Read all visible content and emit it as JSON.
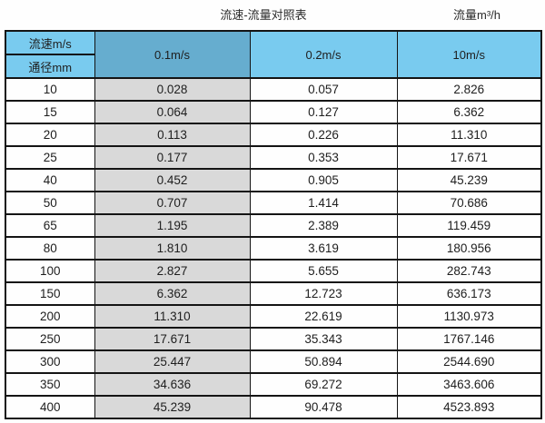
{
  "page": {
    "title": "流速-流量对照表",
    "unit_label": "流量m³/h"
  },
  "table": {
    "corner": {
      "top": "流速m/s",
      "bottom": "通径mm"
    },
    "velocity_headers": [
      "0.1m/s",
      "0.2m/s",
      "10m/s"
    ],
    "rows": [
      [
        "10",
        "0.028",
        "0.057",
        "2.826"
      ],
      [
        "15",
        "0.064",
        "0.127",
        "6.362"
      ],
      [
        "20",
        "0.113",
        "0.226",
        "11.310"
      ],
      [
        "25",
        "0.177",
        "0.353",
        "17.671"
      ],
      [
        "40",
        "0.452",
        "0.905",
        "45.239"
      ],
      [
        "50",
        "0.707",
        "1.414",
        "70.686"
      ],
      [
        "65",
        "1.195",
        "2.389",
        "119.459"
      ],
      [
        "80",
        "1.810",
        "3.619",
        "180.956"
      ],
      [
        "100",
        "2.827",
        "5.655",
        "282.743"
      ],
      [
        "150",
        "6.362",
        "12.723",
        "636.173"
      ],
      [
        "200",
        "11.310",
        "22.619",
        "1130.973"
      ],
      [
        "250",
        "17.671",
        "35.343",
        "1767.146"
      ],
      [
        "300",
        "25.447",
        "50.894",
        "2544.690"
      ],
      [
        "350",
        "34.636",
        "69.272",
        "3463.606"
      ],
      [
        "400",
        "45.239",
        "90.478",
        "4523.893"
      ]
    ]
  },
  "colors": {
    "header_light_blue": "#79cbef",
    "header_dark_blue": "#66adcf",
    "highlight_column_gray": "#d9d9d9",
    "border_black": "#141414"
  },
  "chart_data": {
    "type": "table",
    "title": "流速-流量对照表",
    "unit": "流量m³/h",
    "columns": [
      "通径mm",
      "0.1m/s",
      "0.2m/s",
      "10m/s"
    ],
    "rows": [
      [
        10,
        0.028,
        0.057,
        2.826
      ],
      [
        15,
        0.064,
        0.127,
        6.362
      ],
      [
        20,
        0.113,
        0.226,
        11.31
      ],
      [
        25,
        0.177,
        0.353,
        17.671
      ],
      [
        40,
        0.452,
        0.905,
        45.239
      ],
      [
        50,
        0.707,
        1.414,
        70.686
      ],
      [
        65,
        1.195,
        2.389,
        119.459
      ],
      [
        80,
        1.81,
        3.619,
        180.956
      ],
      [
        100,
        2.827,
        5.655,
        282.743
      ],
      [
        150,
        6.362,
        12.723,
        636.173
      ],
      [
        200,
        11.31,
        22.619,
        1130.973
      ],
      [
        250,
        17.671,
        35.343,
        1767.146
      ],
      [
        300,
        25.447,
        50.894,
        2544.69
      ],
      [
        350,
        34.636,
        69.272,
        3463.606
      ],
      [
        400,
        45.239,
        90.478,
        4523.893
      ]
    ]
  }
}
